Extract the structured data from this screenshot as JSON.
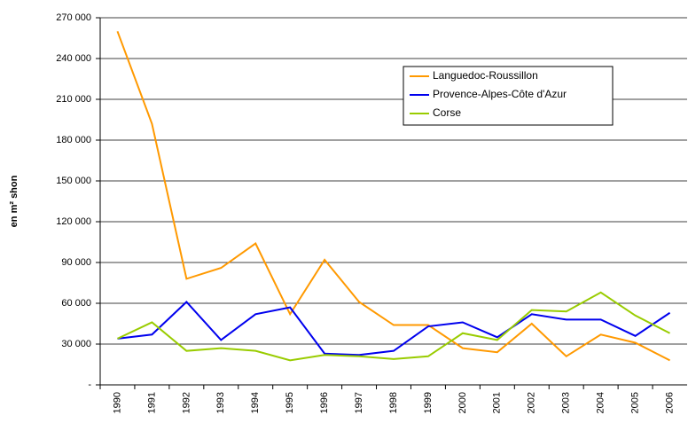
{
  "chart_data": {
    "type": "line",
    "y_label": "en m² shon",
    "categories": [
      "1990",
      "1991",
      "1992",
      "1993",
      "1994",
      "1995",
      "1996",
      "1997",
      "1998",
      "1999",
      "2000",
      "2001",
      "2002",
      "2003",
      "2004",
      "2005",
      "2006"
    ],
    "series": [
      {
        "name": "Languedoc-Roussillon",
        "color": "#ff9900",
        "values": [
          260000,
          192000,
          78000,
          86000,
          104000,
          52000,
          92000,
          61000,
          44000,
          44000,
          27000,
          24000,
          45000,
          21000,
          37000,
          31000,
          18000
        ]
      },
      {
        "name": "Provence-Alpes-Côte d'Azur",
        "color": "#0000ee",
        "values": [
          34000,
          37000,
          61000,
          33000,
          52000,
          57000,
          23000,
          22000,
          25000,
          43000,
          46000,
          35000,
          52000,
          48000,
          48000,
          36000,
          53000
        ]
      },
      {
        "name": "Corse",
        "color": "#99cc00",
        "values": [
          34000,
          46000,
          25000,
          27000,
          25000,
          18000,
          22000,
          21000,
          19000,
          21000,
          38000,
          33000,
          55000,
          54000,
          68000,
          51000,
          38000
        ]
      }
    ],
    "ylim": [
      0,
      270000
    ],
    "yticks": [
      {
        "value": 0,
        "label": "-"
      },
      {
        "value": 30000,
        "label": "30 000"
      },
      {
        "value": 60000,
        "label": "60 000"
      },
      {
        "value": 90000,
        "label": "90 000"
      },
      {
        "value": 120000,
        "label": "120 000"
      },
      {
        "value": 150000,
        "label": "150 000"
      },
      {
        "value": 180000,
        "label": "180 000"
      },
      {
        "value": 210000,
        "label": "210 000"
      },
      {
        "value": 240000,
        "label": "240 000"
      },
      {
        "value": 270000,
        "label": "270 000"
      }
    ],
    "grid": true
  }
}
